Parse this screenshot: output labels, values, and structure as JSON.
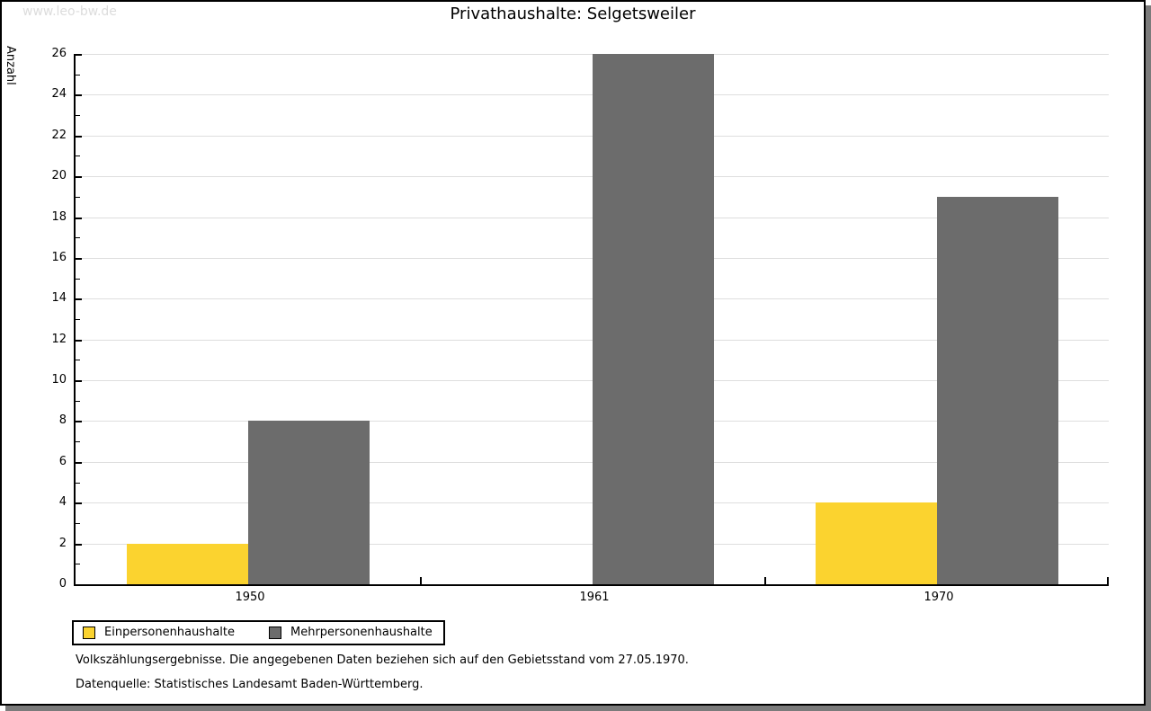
{
  "watermark": "www.leo-bw.de",
  "title": "Privathaushalte: Selgetsweiler",
  "chart_data": {
    "type": "bar",
    "categories": [
      "1950",
      "1961",
      "1970"
    ],
    "series": [
      {
        "name": "Einpersonenhaushalte",
        "color": "#fbd32f",
        "values": [
          2,
          0,
          4
        ]
      },
      {
        "name": "Mehrpersonenhaushalte",
        "color": "#6c6c6c",
        "values": [
          8,
          26,
          19
        ]
      }
    ],
    "xlabel": "",
    "ylabel": "Anzahl",
    "ylim": [
      0,
      26
    ],
    "ytick_step": 2,
    "ytick_minor_step": 1,
    "grid": true,
    "legend_position": "bottom-left"
  },
  "footnotes": [
    "Volkszählungsergebnisse. Die angegebenen Daten beziehen sich auf den Gebietsstand vom 27.05.1970.",
    "Datenquelle: Statistisches Landesamt Baden-Württemberg."
  ],
  "colors": {
    "bar_yellow": "#fbd32f",
    "bar_gray": "#6c6c6c",
    "gridline": "#dedede",
    "watermark_text": "#dcdcdc",
    "page_border": "#000000",
    "page_shadow": "#7b7b7b"
  }
}
